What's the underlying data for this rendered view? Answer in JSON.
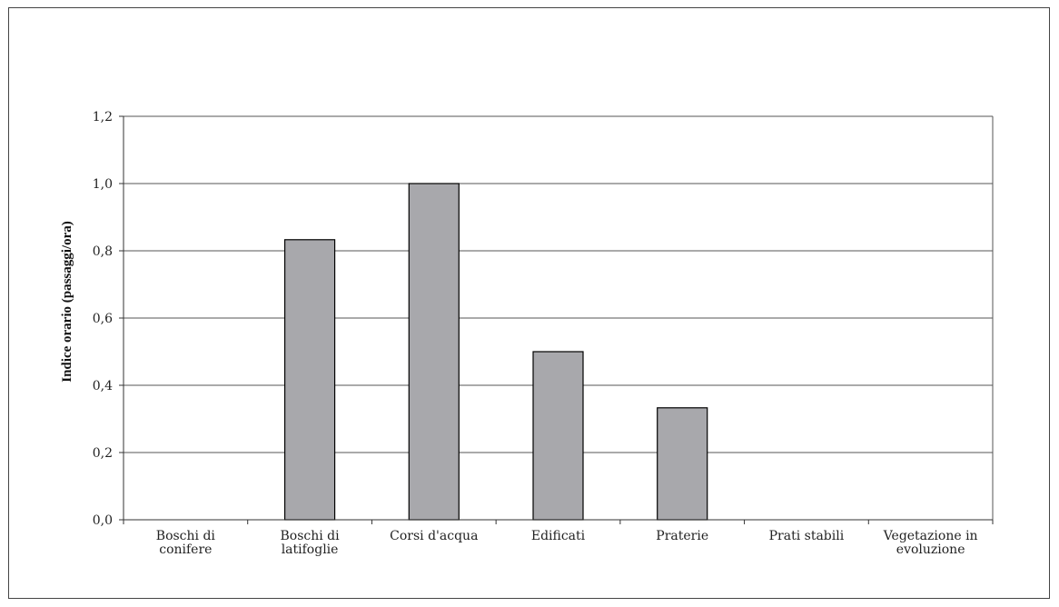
{
  "chart_data": {
    "type": "bar",
    "title": "",
    "xlabel": "",
    "ylabel": "Indice orario (passaggi/ora)",
    "ylim": [
      0,
      1.2
    ],
    "yticks": [
      "0,0",
      "0,2",
      "0,4",
      "0,6",
      "0,8",
      "1,0",
      "1,2"
    ],
    "categories": [
      [
        "Boschi di",
        "conifere"
      ],
      [
        "Boschi di",
        "latifoglie"
      ],
      [
        "Corsi d'acqua"
      ],
      [
        "Edificati"
      ],
      [
        "Praterie"
      ],
      [
        "Prati stabili"
      ],
      [
        "Vegetazione in",
        "evoluzione"
      ]
    ],
    "values": [
      0,
      0.833,
      1.0,
      0.5,
      0.333,
      0,
      0
    ],
    "grid": true,
    "bar_color": "#a8a8ac",
    "bar_edge_color": "#000000",
    "grid_color": "#555555"
  }
}
